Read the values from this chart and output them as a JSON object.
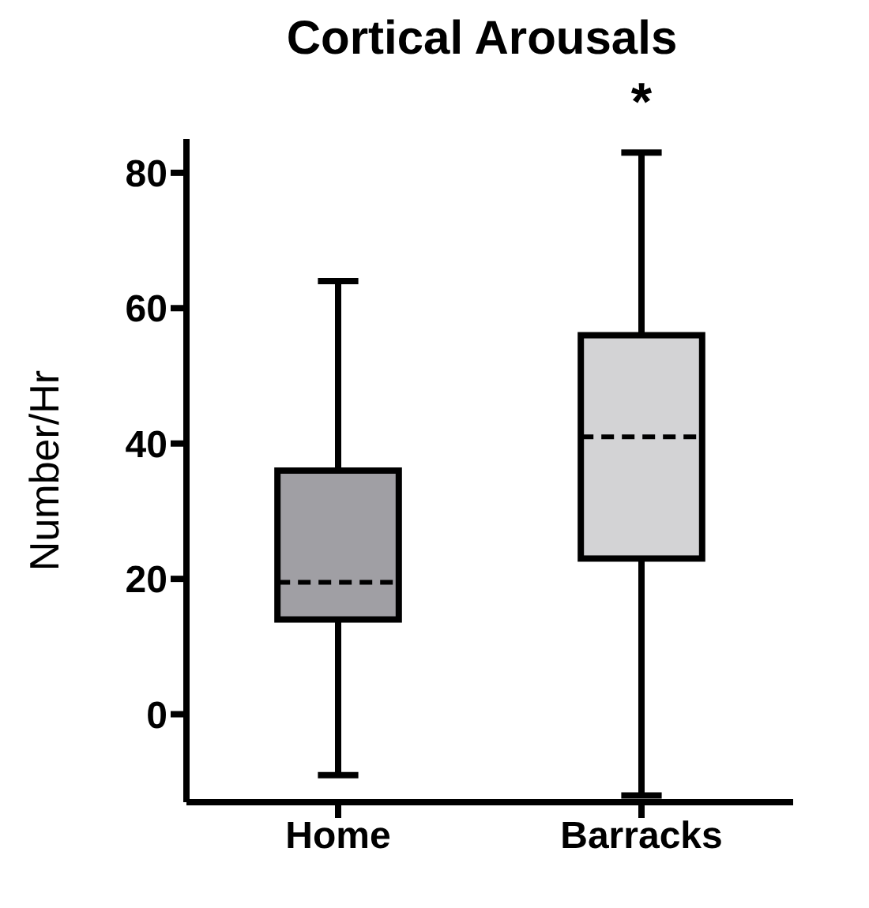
{
  "chart_data": {
    "type": "box",
    "title": "Cortical Arousals",
    "ylabel": "Number/Hr",
    "categories": [
      "Home",
      "Barracks"
    ],
    "series": [
      {
        "colors": [
          "#a09fa4",
          "#d3d3d5"
        ],
        "boxes": [
          {
            "low": -9,
            "q1": 14,
            "median": 19.5,
            "q3": 36,
            "high": 64
          },
          {
            "low": -12,
            "q1": 23,
            "median": 41,
            "q3": 56,
            "high": 83
          }
        ]
      }
    ],
    "ylim": [
      -13,
      85
    ],
    "yticks": [
      0,
      20,
      40,
      60,
      80
    ],
    "annotations": [
      "*"
    ]
  }
}
